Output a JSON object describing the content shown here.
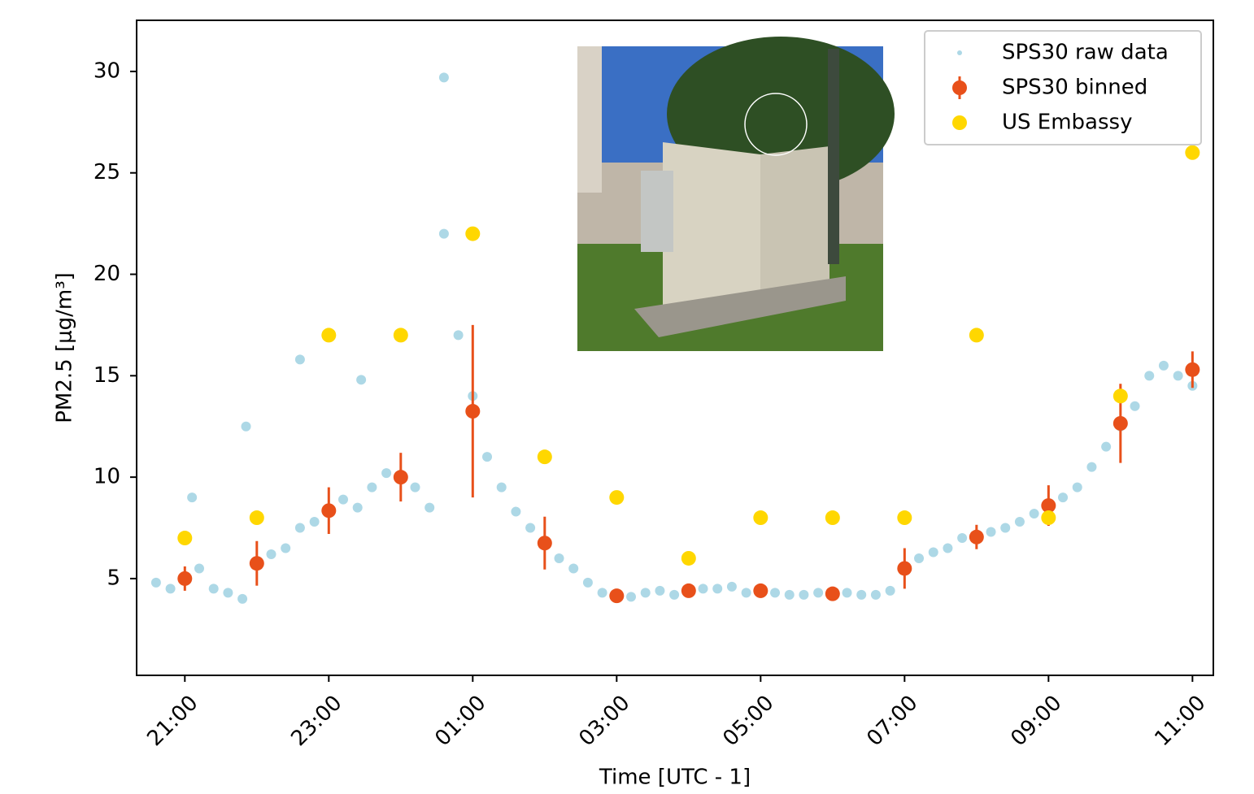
{
  "chart_data": {
    "type": "scatter",
    "x_label": "Time [UTC - 1]",
    "y_label": "PM2.5 [μg/m³]",
    "xlim": [
      20.33,
      35.29
    ],
    "ylim": [
      0.23,
      32.52
    ],
    "xticks": [
      {
        "value": 21,
        "label": "21:00"
      },
      {
        "value": 23,
        "label": "23:00"
      },
      {
        "value": 25,
        "label": "01:00"
      },
      {
        "value": 27,
        "label": "03:00"
      },
      {
        "value": 29,
        "label": "05:00"
      },
      {
        "value": 31,
        "label": "07:00"
      },
      {
        "value": 33,
        "label": "09:00"
      },
      {
        "value": 35,
        "label": "11:00"
      }
    ],
    "yticks": [
      5,
      10,
      15,
      20,
      25,
      30
    ],
    "legend": "upper right",
    "series": [
      {
        "name": "SPS30 raw data",
        "color": "#add8e6",
        "x": [
          20.6,
          20.8,
          21.0,
          21.2,
          21.4,
          21.6,
          21.8,
          22.0,
          22.2,
          22.4,
          22.6,
          22.8,
          23.0,
          23.2,
          23.4,
          23.6,
          23.8,
          24.0,
          24.2,
          24.4,
          24.6,
          24.8,
          25.0,
          25.2,
          25.4,
          25.6,
          25.8,
          26.0,
          26.2,
          26.4,
          26.6,
          26.8,
          27.0,
          27.2,
          27.4,
          27.6,
          27.8,
          28.0,
          28.2,
          28.4,
          28.6,
          28.8,
          29.0,
          29.2,
          29.4,
          29.6,
          29.8,
          30.0,
          30.2,
          30.4,
          30.6,
          30.8,
          31.0,
          31.2,
          31.4,
          31.6,
          31.8,
          32.0,
          32.2,
          32.4,
          32.6,
          32.8,
          33.0,
          33.2,
          33.4,
          33.6,
          33.8,
          34.0,
          34.2,
          34.4,
          34.6,
          34.8,
          35.0,
          21.1,
          21.85,
          22.6,
          23.45,
          24.6
        ],
        "values": [
          4.8,
          4.5,
          4.9,
          5.5,
          4.5,
          4.3,
          4.0,
          5.8,
          6.2,
          6.5,
          7.5,
          7.8,
          8.3,
          8.9,
          8.5,
          9.5,
          10.2,
          10.0,
          9.5,
          8.5,
          22,
          17,
          14,
          11,
          9.5,
          8.3,
          7.5,
          6.8,
          6.0,
          5.5,
          4.8,
          4.3,
          4.2,
          4.1,
          4.3,
          4.4,
          4.2,
          4.4,
          4.5,
          4.5,
          4.6,
          4.3,
          4.4,
          4.3,
          4.2,
          4.2,
          4.3,
          4.2,
          4.3,
          4.2,
          4.2,
          4.4,
          5.5,
          6.0,
          6.3,
          6.5,
          7.0,
          7.0,
          7.3,
          7.5,
          7.8,
          8.2,
          8.6,
          9.0,
          9.5,
          10.5,
          11.5,
          12.5,
          13.5,
          15.0,
          15.5,
          15.0,
          14.5,
          9.0,
          12.5,
          15.8,
          14.8,
          29.7
        ]
      },
      {
        "name": "SPS30 binned",
        "color": "#e8501a",
        "x": [
          21,
          22,
          23,
          24,
          25,
          26,
          27,
          28,
          29,
          30,
          31,
          32,
          33,
          34,
          35
        ],
        "values": [
          5.0,
          5.75,
          8.35,
          10.0,
          13.25,
          6.75,
          4.15,
          4.4,
          4.4,
          4.25,
          5.5,
          7.05,
          8.6,
          12.65,
          15.3
        ],
        "errors": [
          0.6,
          1.1,
          1.15,
          1.2,
          4.25,
          1.3,
          0.3,
          0.3,
          0.35,
          0.2,
          1.0,
          0.6,
          1.0,
          1.95,
          0.9
        ]
      },
      {
        "name": "US Embassy",
        "color": "#ffd700",
        "x": [
          21,
          22,
          23,
          24,
          25,
          26,
          27,
          28,
          29,
          30,
          31,
          32,
          33,
          34,
          35
        ],
        "values": [
          7,
          8,
          17,
          17,
          22,
          11,
          9,
          6,
          8,
          8,
          8,
          17,
          8,
          14,
          26
        ]
      }
    ]
  }
}
